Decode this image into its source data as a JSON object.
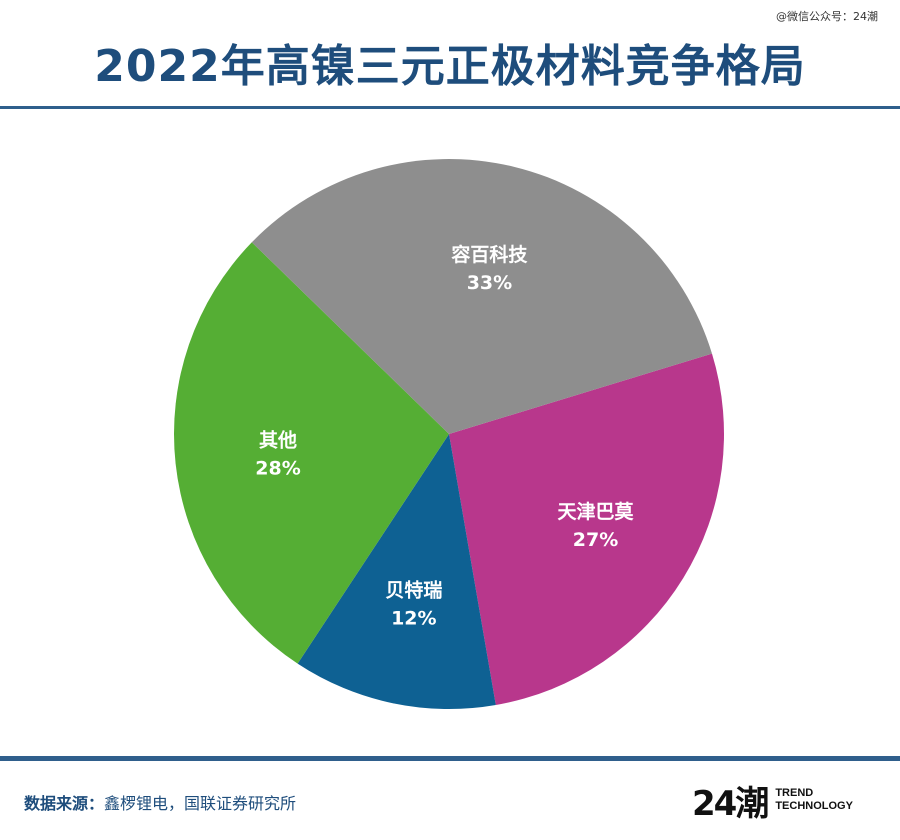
{
  "header": {
    "title": "2022年高镍三元正极材料竞争格局",
    "watermark": "@微信公众号：24潮"
  },
  "footer": {
    "source_label": "数据来源：",
    "source_text": "鑫椤锂电，国联证券研究所",
    "logo_mark": "24潮",
    "logo_line1": "TREND",
    "logo_line2": "TECHNOLOGY"
  },
  "colors": {
    "title": "#1e4d7c",
    "rule": "#2f5f8c"
  },
  "chart_data": {
    "type": "pie",
    "title": "2022年高镍三元正极材料竞争格局",
    "slices": [
      {
        "label": "天津巴莫",
        "value": 27,
        "value_label": "27%",
        "color": "#b8378c"
      },
      {
        "label": "贝特瑞",
        "value": 12,
        "value_label": "12%",
        "color": "#0e6193"
      },
      {
        "label": "其他",
        "value": 28,
        "value_label": "28%",
        "color": "#55ae34"
      },
      {
        "label": "容百科技",
        "value": 33,
        "value_label": "33%",
        "color": "#8e8e8e"
      }
    ],
    "start_angle_deg": -17,
    "direction": "clockwise",
    "legend": "none"
  }
}
